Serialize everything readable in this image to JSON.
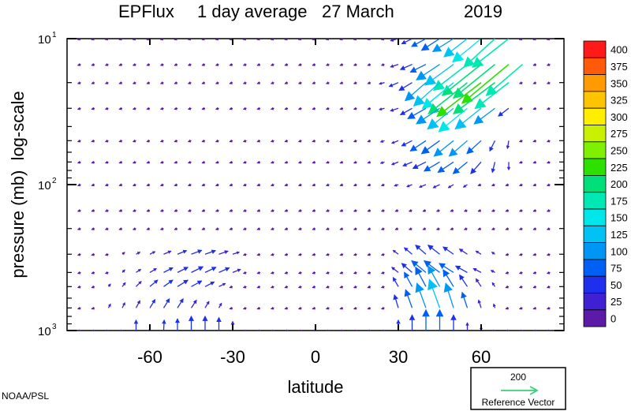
{
  "credit": "NOAA/PSL",
  "chart_data": {
    "type": "vector-field",
    "title": {
      "name": "EPFlux",
      "period": "1 day average",
      "date": "27 March",
      "year": "2019"
    },
    "xlabel": "latitude",
    "ylabel": "pressure (mb)  log-scale",
    "xlim": [
      -90,
      90
    ],
    "ylim": [
      1000,
      10
    ],
    "y_scale": "log",
    "x_ticks": [
      {
        "value": -60,
        "label": "-60"
      },
      {
        "value": -30,
        "label": "-30"
      },
      {
        "value": 0,
        "label": "0"
      },
      {
        "value": 30,
        "label": "30"
      },
      {
        "value": 60,
        "label": "60"
      }
    ],
    "y_ticks": [
      {
        "value": 10,
        "base": "10",
        "exp": "1"
      },
      {
        "value": 100,
        "base": "10",
        "exp": "2"
      },
      {
        "value": 1000,
        "base": "10",
        "exp": "3"
      }
    ],
    "colorbar": {
      "labels": [
        "400",
        "375",
        "350",
        "325",
        "300",
        "275",
        "250",
        "225",
        "200",
        "175",
        "150",
        "125",
        "100",
        "75",
        "50",
        "25",
        "0"
      ],
      "colors": [
        "#ff1a1a",
        "#ff5a0a",
        "#ff9a00",
        "#ffc400",
        "#ffee00",
        "#c8f000",
        "#7ef000",
        "#2ee000",
        "#00e07a",
        "#00e8b4",
        "#00e6ea",
        "#00c2f4",
        "#0096f6",
        "#0060f4",
        "#1f2fee",
        "#3f20d2",
        "#5c1aa6"
      ]
    },
    "reference_vector": {
      "magnitude": "200",
      "label": "Reference Vector",
      "color": "#3ad07a"
    },
    "grid_lat": [
      -85,
      -80,
      -75,
      -70,
      -65,
      -60,
      -55,
      -50,
      -45,
      -40,
      -35,
      -30,
      -25,
      -20,
      -15,
      -10,
      -5,
      0,
      5,
      10,
      15,
      20,
      25,
      30,
      35,
      40,
      45,
      50,
      55,
      60,
      65,
      70,
      75,
      80,
      85
    ],
    "grid_pressure": [
      10,
      15,
      20,
      30,
      50,
      70,
      100,
      150,
      200,
      300,
      400,
      500,
      700,
      1000
    ],
    "vector_scale_per_200": 22,
    "background_field": {
      "u": -3,
      "v": -1
    },
    "vectors": [
      {
        "lat": 30,
        "p": 10,
        "u": -30,
        "v": -8
      },
      {
        "lat": 35,
        "p": 10,
        "u": -40,
        "v": -20
      },
      {
        "lat": 40,
        "p": 10,
        "u": -55,
        "v": -30
      },
      {
        "lat": 45,
        "p": 10,
        "u": -70,
        "v": -45
      },
      {
        "lat": 50,
        "p": 10,
        "u": -80,
        "v": -50
      },
      {
        "lat": 55,
        "p": 10,
        "u": -90,
        "v": -70
      },
      {
        "lat": 60,
        "p": 10,
        "u": -110,
        "v": -90
      },
      {
        "lat": 65,
        "p": 10,
        "u": -120,
        "v": -110
      },
      {
        "lat": 70,
        "p": 10,
        "u": -140,
        "v": -110
      },
      {
        "lat": 30,
        "p": 15,
        "u": -30,
        "v": -10
      },
      {
        "lat": 35,
        "p": 15,
        "u": -45,
        "v": -20
      },
      {
        "lat": 40,
        "p": 15,
        "u": -60,
        "v": -30
      },
      {
        "lat": 45,
        "p": 15,
        "u": -90,
        "v": -60
      },
      {
        "lat": 50,
        "p": 15,
        "u": -110,
        "v": -80
      },
      {
        "lat": 55,
        "p": 15,
        "u": -130,
        "v": -100
      },
      {
        "lat": 60,
        "p": 15,
        "u": -150,
        "v": -120
      },
      {
        "lat": 65,
        "p": 15,
        "u": -160,
        "v": -130
      },
      {
        "lat": 70,
        "p": 15,
        "u": -180,
        "v": -150
      },
      {
        "lat": 75,
        "p": 15,
        "u": -140,
        "v": -120
      },
      {
        "lat": 25,
        "p": 20,
        "u": -20,
        "v": -5
      },
      {
        "lat": 30,
        "p": 20,
        "u": -35,
        "v": -15
      },
      {
        "lat": 35,
        "p": 20,
        "u": -50,
        "v": -30
      },
      {
        "lat": 40,
        "p": 20,
        "u": -80,
        "v": -70
      },
      {
        "lat": 45,
        "p": 20,
        "u": -100,
        "v": -90
      },
      {
        "lat": 50,
        "p": 20,
        "u": -120,
        "v": -100
      },
      {
        "lat": 55,
        "p": 20,
        "u": -150,
        "v": -120
      },
      {
        "lat": 60,
        "p": 20,
        "u": -170,
        "v": -130
      },
      {
        "lat": 65,
        "p": 20,
        "u": -160,
        "v": -120
      },
      {
        "lat": 70,
        "p": 20,
        "u": -130,
        "v": -100
      },
      {
        "lat": 25,
        "p": 30,
        "u": -20,
        "v": -5
      },
      {
        "lat": 30,
        "p": 30,
        "u": -30,
        "v": -10
      },
      {
        "lat": 35,
        "p": 30,
        "u": -45,
        "v": -25
      },
      {
        "lat": 40,
        "p": 30,
        "u": -70,
        "v": -40
      },
      {
        "lat": 45,
        "p": 30,
        "u": -90,
        "v": -60
      },
      {
        "lat": 50,
        "p": 30,
        "u": -100,
        "v": -80
      },
      {
        "lat": 55,
        "p": 30,
        "u": -110,
        "v": -90
      },
      {
        "lat": 60,
        "p": 30,
        "u": -100,
        "v": -80
      },
      {
        "lat": 65,
        "p": 30,
        "u": -80,
        "v": -60
      },
      {
        "lat": 70,
        "p": 30,
        "u": -40,
        "v": -30
      },
      {
        "lat": 25,
        "p": 50,
        "u": -15,
        "v": -5
      },
      {
        "lat": 30,
        "p": 50,
        "u": -25,
        "v": -10
      },
      {
        "lat": 35,
        "p": 50,
        "u": -40,
        "v": -20
      },
      {
        "lat": 40,
        "p": 50,
        "u": -60,
        "v": -40
      },
      {
        "lat": 45,
        "p": 50,
        "u": -70,
        "v": -50
      },
      {
        "lat": 50,
        "p": 50,
        "u": -75,
        "v": -60
      },
      {
        "lat": 55,
        "p": 50,
        "u": -70,
        "v": -60
      },
      {
        "lat": 60,
        "p": 50,
        "u": -55,
        "v": -50
      },
      {
        "lat": 65,
        "p": 50,
        "u": -20,
        "v": -40
      },
      {
        "lat": 70,
        "p": 50,
        "u": -5,
        "v": -30
      },
      {
        "lat": 25,
        "p": 70,
        "u": -15,
        "v": -5
      },
      {
        "lat": 30,
        "p": 70,
        "u": -25,
        "v": -10
      },
      {
        "lat": 35,
        "p": 70,
        "u": -35,
        "v": -15
      },
      {
        "lat": 40,
        "p": 70,
        "u": -50,
        "v": -25
      },
      {
        "lat": 45,
        "p": 70,
        "u": -60,
        "v": -35
      },
      {
        "lat": 50,
        "p": 70,
        "u": -60,
        "v": -40
      },
      {
        "lat": 55,
        "p": 70,
        "u": -55,
        "v": -45
      },
      {
        "lat": 60,
        "p": 70,
        "u": -40,
        "v": -45
      },
      {
        "lat": 65,
        "p": 70,
        "u": -10,
        "v": -40
      },
      {
        "lat": 70,
        "p": 70,
        "u": 0,
        "v": -30
      },
      {
        "lat": 30,
        "p": 100,
        "u": -15,
        "v": -5
      },
      {
        "lat": 35,
        "p": 100,
        "u": -20,
        "v": -8
      },
      {
        "lat": 40,
        "p": 100,
        "u": -25,
        "v": -10
      },
      {
        "lat": 45,
        "p": 100,
        "u": -25,
        "v": -12
      },
      {
        "lat": 50,
        "p": 100,
        "u": -20,
        "v": -12
      },
      {
        "lat": 55,
        "p": 100,
        "u": -15,
        "v": -10
      },
      {
        "lat": -70,
        "p": 300,
        "u": 8,
        "v": 6
      },
      {
        "lat": -65,
        "p": 300,
        "u": 15,
        "v": 8
      },
      {
        "lat": -60,
        "p": 300,
        "u": 20,
        "v": 10
      },
      {
        "lat": -55,
        "p": 300,
        "u": 28,
        "v": 12
      },
      {
        "lat": -50,
        "p": 300,
        "u": 35,
        "v": 14
      },
      {
        "lat": -45,
        "p": 300,
        "u": 40,
        "v": 15
      },
      {
        "lat": -40,
        "p": 300,
        "u": 40,
        "v": 14
      },
      {
        "lat": -35,
        "p": 300,
        "u": 35,
        "v": 12
      },
      {
        "lat": -30,
        "p": 300,
        "u": 25,
        "v": 8
      },
      {
        "lat": -70,
        "p": 400,
        "u": 10,
        "v": 10
      },
      {
        "lat": -65,
        "p": 400,
        "u": 18,
        "v": 12
      },
      {
        "lat": -60,
        "p": 400,
        "u": 25,
        "v": 15
      },
      {
        "lat": -55,
        "p": 400,
        "u": 35,
        "v": 18
      },
      {
        "lat": -50,
        "p": 400,
        "u": 40,
        "v": 20
      },
      {
        "lat": -45,
        "p": 400,
        "u": 45,
        "v": 22
      },
      {
        "lat": -40,
        "p": 400,
        "u": 42,
        "v": 20
      },
      {
        "lat": -35,
        "p": 400,
        "u": 40,
        "v": 18
      },
      {
        "lat": -30,
        "p": 400,
        "u": 30,
        "v": 12
      },
      {
        "lat": -75,
        "p": 500,
        "u": 8,
        "v": 10
      },
      {
        "lat": -70,
        "p": 500,
        "u": 12,
        "v": 15
      },
      {
        "lat": -65,
        "p": 500,
        "u": 20,
        "v": 20
      },
      {
        "lat": -60,
        "p": 500,
        "u": 30,
        "v": 25
      },
      {
        "lat": -55,
        "p": 500,
        "u": 35,
        "v": 25
      },
      {
        "lat": -50,
        "p": 500,
        "u": 40,
        "v": 25
      },
      {
        "lat": -45,
        "p": 500,
        "u": 40,
        "v": 22
      },
      {
        "lat": -40,
        "p": 500,
        "u": 35,
        "v": 18
      },
      {
        "lat": -35,
        "p": 500,
        "u": 25,
        "v": 12
      },
      {
        "lat": -75,
        "p": 700,
        "u": 8,
        "v": 15
      },
      {
        "lat": -70,
        "p": 700,
        "u": 10,
        "v": 20
      },
      {
        "lat": -65,
        "p": 700,
        "u": 15,
        "v": 28
      },
      {
        "lat": -60,
        "p": 700,
        "u": 20,
        "v": 32
      },
      {
        "lat": -55,
        "p": 700,
        "u": 22,
        "v": 35
      },
      {
        "lat": -50,
        "p": 700,
        "u": 22,
        "v": 35
      },
      {
        "lat": -45,
        "p": 700,
        "u": 20,
        "v": 30
      },
      {
        "lat": -40,
        "p": 700,
        "u": 15,
        "v": 25
      },
      {
        "lat": -35,
        "p": 700,
        "u": 10,
        "v": 18
      },
      {
        "lat": -65,
        "p": 1000,
        "u": 0,
        "v": 40
      },
      {
        "lat": -55,
        "p": 1000,
        "u": 2,
        "v": 40
      },
      {
        "lat": -50,
        "p": 1000,
        "u": 0,
        "v": 45
      },
      {
        "lat": -45,
        "p": 1000,
        "u": 0,
        "v": 55
      },
      {
        "lat": -40,
        "p": 1000,
        "u": 0,
        "v": 55
      },
      {
        "lat": -35,
        "p": 1000,
        "u": 0,
        "v": 50
      },
      {
        "lat": -30,
        "p": 1000,
        "u": 0,
        "v": 35
      },
      {
        "lat": 30,
        "p": 300,
        "u": -20,
        "v": 15
      },
      {
        "lat": 35,
        "p": 300,
        "u": -30,
        "v": 25
      },
      {
        "lat": 40,
        "p": 300,
        "u": -40,
        "v": 35
      },
      {
        "lat": 45,
        "p": 300,
        "u": -45,
        "v": 35
      },
      {
        "lat": 50,
        "p": 300,
        "u": -40,
        "v": 28
      },
      {
        "lat": 55,
        "p": 300,
        "u": -30,
        "v": 20
      },
      {
        "lat": 60,
        "p": 300,
        "u": -20,
        "v": 12
      },
      {
        "lat": 65,
        "p": 300,
        "u": -12,
        "v": 8
      },
      {
        "lat": 30,
        "p": 400,
        "u": -25,
        "v": 20
      },
      {
        "lat": 35,
        "p": 400,
        "u": -40,
        "v": 35
      },
      {
        "lat": 40,
        "p": 400,
        "u": -55,
        "v": 45
      },
      {
        "lat": 45,
        "p": 400,
        "u": -60,
        "v": 45
      },
      {
        "lat": 50,
        "p": 400,
        "u": -55,
        "v": 35
      },
      {
        "lat": 55,
        "p": 400,
        "u": -45,
        "v": 25
      },
      {
        "lat": 60,
        "p": 400,
        "u": -30,
        "v": 15
      },
      {
        "lat": 65,
        "p": 400,
        "u": -15,
        "v": 8
      },
      {
        "lat": 30,
        "p": 500,
        "u": -20,
        "v": 35
      },
      {
        "lat": 35,
        "p": 500,
        "u": -30,
        "v": 55
      },
      {
        "lat": 40,
        "p": 500,
        "u": -40,
        "v": 75
      },
      {
        "lat": 45,
        "p": 500,
        "u": -45,
        "v": 80
      },
      {
        "lat": 50,
        "p": 500,
        "u": -40,
        "v": 65
      },
      {
        "lat": 55,
        "p": 500,
        "u": -30,
        "v": 45
      },
      {
        "lat": 60,
        "p": 500,
        "u": -20,
        "v": 30
      },
      {
        "lat": 65,
        "p": 500,
        "u": -10,
        "v": 15
      },
      {
        "lat": 30,
        "p": 700,
        "u": -15,
        "v": 50
      },
      {
        "lat": 35,
        "p": 700,
        "u": -25,
        "v": 70
      },
      {
        "lat": 40,
        "p": 700,
        "u": -35,
        "v": 95
      },
      {
        "lat": 45,
        "p": 700,
        "u": -40,
        "v": 110
      },
      {
        "lat": 50,
        "p": 700,
        "u": -30,
        "v": 95
      },
      {
        "lat": 55,
        "p": 700,
        "u": -20,
        "v": 60
      },
      {
        "lat": 60,
        "p": 700,
        "u": -10,
        "v": 30
      },
      {
        "lat": 65,
        "p": 700,
        "u": -5,
        "v": 15
      },
      {
        "lat": 30,
        "p": 1000,
        "u": 0,
        "v": 40
      },
      {
        "lat": 35,
        "p": 1000,
        "u": 0,
        "v": 60
      },
      {
        "lat": 40,
        "p": 1000,
        "u": 0,
        "v": 80
      },
      {
        "lat": 45,
        "p": 1000,
        "u": 0,
        "v": 80
      },
      {
        "lat": 50,
        "p": 1000,
        "u": 0,
        "v": 60
      },
      {
        "lat": 55,
        "p": 1000,
        "u": 0,
        "v": 30
      },
      {
        "lat": 60,
        "p": 1000,
        "u": 0,
        "v": 15
      }
    ]
  }
}
